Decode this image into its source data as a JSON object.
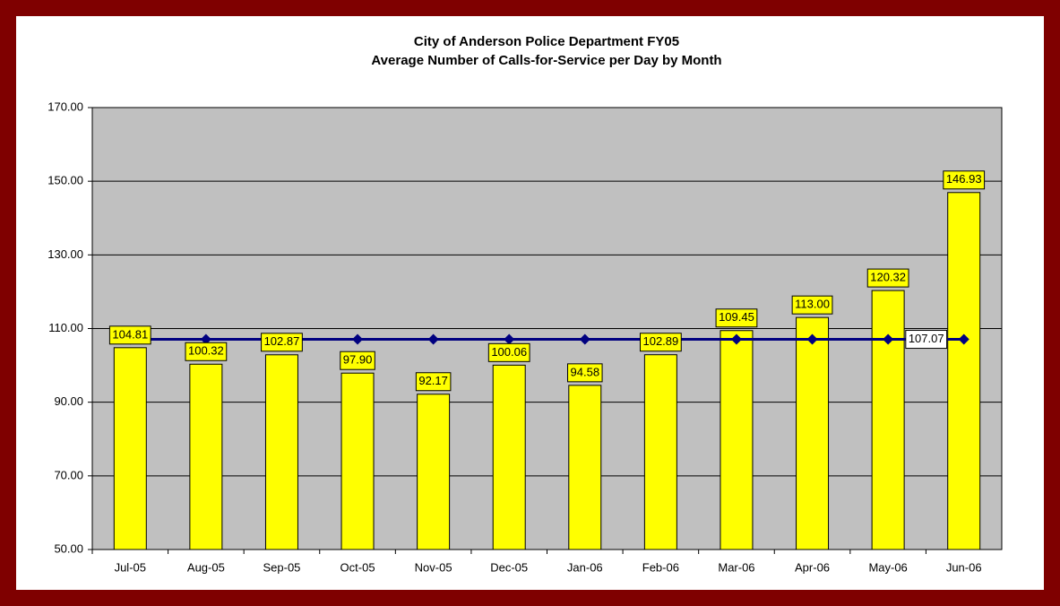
{
  "chart_data": {
    "type": "bar",
    "title": "City of Anderson Police Department FY05",
    "subtitle": "Average Number of Calls-for-Service per Day by Month",
    "categories": [
      "Jul-05",
      "Aug-05",
      "Sep-05",
      "Oct-05",
      "Nov-05",
      "Dec-05",
      "Jan-06",
      "Feb-06",
      "Mar-06",
      "Apr-06",
      "May-06",
      "Jun-06"
    ],
    "series": [
      {
        "type": "bar",
        "color": "#ffff00",
        "values": [
          104.81,
          100.32,
          102.87,
          97.9,
          92.17,
          100.06,
          94.58,
          102.89,
          109.45,
          113.0,
          120.32,
          146.93
        ],
        "value_labels": [
          "104.81",
          "100.32",
          "102.87",
          "97.90",
          "92.17",
          "100.06",
          "94.58",
          "102.89",
          "109.45",
          "113.00",
          "120.32",
          "146.93"
        ]
      },
      {
        "type": "line",
        "color": "#000080",
        "values": [
          107.07,
          107.07,
          107.07,
          107.07,
          107.07,
          107.07,
          107.07,
          107.07,
          107.07,
          107.07,
          107.07,
          107.07
        ],
        "value_labels": [
          null,
          null,
          null,
          null,
          null,
          null,
          null,
          null,
          null,
          null,
          null,
          "107.07"
        ]
      }
    ],
    "ylim": [
      50,
      170
    ],
    "yticks": [
      {
        "value": 50,
        "label": "50.00"
      },
      {
        "value": 70,
        "label": "70.00"
      },
      {
        "value": 90,
        "label": "90.00"
      },
      {
        "value": 110,
        "label": "110.00"
      },
      {
        "value": 130,
        "label": "130.00"
      },
      {
        "value": 150,
        "label": "150.00"
      },
      {
        "value": 170,
        "label": "170.00"
      }
    ],
    "grid": true
  }
}
